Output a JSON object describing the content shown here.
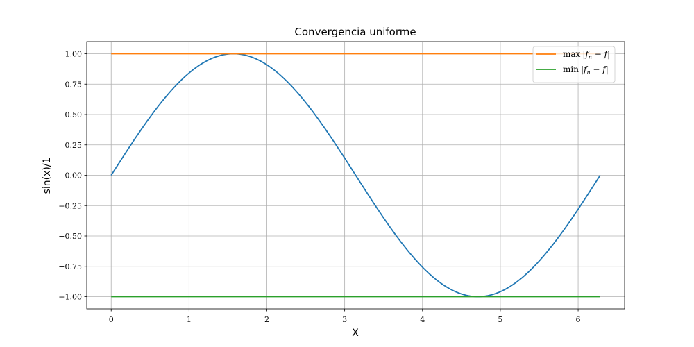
{
  "chart_data": {
    "type": "line",
    "title": "Convergencia uniforme",
    "xlabel": "X",
    "ylabel": "sin(x)/1",
    "xlim": [
      -0.314,
      6.597
    ],
    "ylim": [
      -1.1,
      1.1
    ],
    "grid": true,
    "xticks": [
      0,
      1,
      2,
      3,
      4,
      5,
      6
    ],
    "xtick_labels": [
      "0",
      "1",
      "2",
      "3",
      "4",
      "5",
      "6"
    ],
    "yticks": [
      1.0,
      0.75,
      0.5,
      0.25,
      0.0,
      -0.25,
      -0.5,
      -0.75,
      -1.0
    ],
    "ytick_labels": [
      "1.00",
      "0.75",
      "0.50",
      "0.25",
      "0.00",
      "−0.25",
      "−0.50",
      "−0.75",
      "−1.00"
    ],
    "legend_position": "upper right",
    "series": [
      {
        "color": "#1f77b4",
        "function": "sin(x)",
        "x_range": [
          0,
          6.283
        ],
        "x": [
          0,
          0.5236,
          1.0472,
          1.5708,
          2.0944,
          2.618,
          3.1416,
          3.6652,
          4.1888,
          4.7124,
          5.236,
          5.7596,
          6.2832
        ],
        "y": [
          0,
          0.5,
          0.866,
          1.0,
          0.866,
          0.5,
          0,
          -0.5,
          -0.866,
          -1.0,
          -0.866,
          -0.5,
          0
        ]
      },
      {
        "name": "max|f_n − f|",
        "legend_label": {
          "fn": "max",
          "lhs": "|f",
          "sub": "n",
          "rhs": " − f|"
        },
        "color": "#ff7f0e",
        "x": [
          0,
          6.283
        ],
        "y": [
          1.0,
          1.0
        ]
      },
      {
        "name": "min|f_n − f|",
        "legend_label": {
          "fn": "min",
          "lhs": "|f",
          "sub": "n",
          "rhs": " − f|"
        },
        "color": "#2ca02c",
        "x": [
          0,
          6.283
        ],
        "y": [
          -1.0,
          -1.0
        ]
      }
    ]
  }
}
